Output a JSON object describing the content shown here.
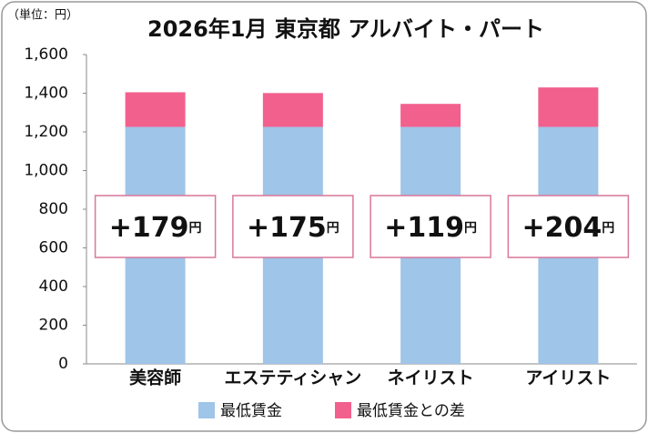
{
  "chart_data": {
    "type": "bar",
    "stacked": true,
    "title": "2026年1月 東京都 アルバイト・パート",
    "unit_note": "（単位：円）",
    "categories": [
      "美容師",
      "エステティシャン",
      "ネイリスト",
      "アイリスト"
    ],
    "series": [
      {
        "name": "最低賃金",
        "color": "#9fc5e8",
        "values": [
          1226,
          1226,
          1226,
          1226
        ]
      },
      {
        "name": "最低賃金との差",
        "color": "#f2608e",
        "values": [
          179,
          175,
          119,
          204
        ],
        "value_labels": [
          "+179",
          "+175",
          "+119",
          "+204"
        ]
      }
    ],
    "value_label_unit": "円",
    "ylim": [
      0,
      1600
    ],
    "yticks": [
      0,
      200,
      400,
      600,
      800,
      {
        "value": 1000,
        "label": "1,000"
      },
      {
        "value": 1200,
        "label": "1,200"
      },
      {
        "value": 1400,
        "label": "1,400"
      },
      {
        "value": 1600,
        "label": "1,600"
      }
    ],
    "grid": false
  }
}
